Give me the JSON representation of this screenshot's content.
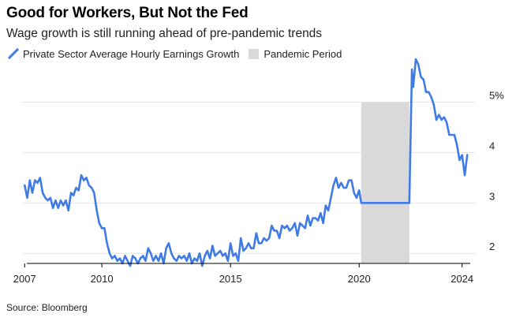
{
  "title": "Good for Workers, But Not the Fed",
  "subtitle": "Wage growth is still running ahead of pre-pandemic trends",
  "source": "Source: Bloomberg",
  "colors": {
    "line": "#3f7be6",
    "band": "#d9d9d9",
    "grid": "#e6e6e6",
    "axis": "#000000"
  },
  "chart_data": {
    "type": "line",
    "title": "Good for Workers, But Not the Fed",
    "subtitle": "Wage growth is still running ahead of pre-pandemic trends",
    "xlabel": "",
    "ylabel": "",
    "xlim": [
      2006.9,
      2024.5
    ],
    "ylim": [
      1.8,
      5.9
    ],
    "grid": true,
    "legend_position": "top-left",
    "x_ticks": [
      {
        "value": 2007,
        "label": "2007"
      },
      {
        "value": 2010,
        "label": "2010"
      },
      {
        "value": 2015,
        "label": "2015"
      },
      {
        "value": 2020,
        "label": "2020"
      },
      {
        "value": 2024,
        "label": "2024"
      }
    ],
    "y_ticks": [
      {
        "value": 2,
        "label": "2"
      },
      {
        "value": 3,
        "label": "3"
      },
      {
        "value": 4,
        "label": "4"
      },
      {
        "value": 5,
        "label": "5%"
      }
    ],
    "legend": [
      {
        "label": "Private Sector Average Hourly Earnings Growth",
        "kind": "line",
        "color": "#3f7be6"
      },
      {
        "label": "Pandemic Period",
        "kind": "band",
        "color": "#d9d9d9"
      }
    ],
    "bands": [
      {
        "name": "Pandemic Period",
        "x_start": 2020.08,
        "x_end": 2021.95,
        "color": "#d9d9d9"
      }
    ],
    "series": [
      {
        "name": "Private Sector Average Hourly Earnings Growth",
        "color": "#3f7be6",
        "points": [
          [
            2007.0,
            3.35
          ],
          [
            2007.1,
            3.1
          ],
          [
            2007.2,
            3.45
          ],
          [
            2007.3,
            3.2
          ],
          [
            2007.4,
            3.45
          ],
          [
            2007.5,
            3.4
          ],
          [
            2007.6,
            3.5
          ],
          [
            2007.7,
            3.2
          ],
          [
            2007.8,
            3.1
          ],
          [
            2007.9,
            3.05
          ],
          [
            2008.0,
            3.1
          ],
          [
            2008.1,
            2.9
          ],
          [
            2008.2,
            3.05
          ],
          [
            2008.3,
            2.9
          ],
          [
            2008.4,
            3.05
          ],
          [
            2008.5,
            2.95
          ],
          [
            2008.6,
            3.05
          ],
          [
            2008.7,
            2.85
          ],
          [
            2008.8,
            3.2
          ],
          [
            2008.9,
            3.15
          ],
          [
            2009.0,
            3.3
          ],
          [
            2009.1,
            3.25
          ],
          [
            2009.2,
            3.55
          ],
          [
            2009.3,
            3.45
          ],
          [
            2009.4,
            3.5
          ],
          [
            2009.5,
            3.35
          ],
          [
            2009.6,
            3.3
          ],
          [
            2009.7,
            3.2
          ],
          [
            2009.8,
            2.85
          ],
          [
            2009.9,
            2.6
          ],
          [
            2010.0,
            2.5
          ],
          [
            2010.1,
            2.5
          ],
          [
            2010.2,
            2.2
          ],
          [
            2010.3,
            2.0
          ],
          [
            2010.4,
            1.9
          ],
          [
            2010.5,
            1.95
          ],
          [
            2010.6,
            1.85
          ],
          [
            2010.7,
            1.9
          ],
          [
            2010.8,
            1.8
          ],
          [
            2010.9,
            1.95
          ],
          [
            2011.0,
            1.85
          ],
          [
            2011.1,
            1.75
          ],
          [
            2011.2,
            1.95
          ],
          [
            2011.3,
            1.9
          ],
          [
            2011.4,
            1.8
          ],
          [
            2011.5,
            1.9
          ],
          [
            2011.6,
            1.95
          ],
          [
            2011.7,
            1.85
          ],
          [
            2011.8,
            2.1
          ],
          [
            2011.9,
            2.0
          ],
          [
            2012.0,
            1.85
          ],
          [
            2012.1,
            1.95
          ],
          [
            2012.2,
            1.85
          ],
          [
            2012.3,
            2.0
          ],
          [
            2012.4,
            1.8
          ],
          [
            2012.5,
            2.1
          ],
          [
            2012.6,
            2.2
          ],
          [
            2012.7,
            2.0
          ],
          [
            2012.8,
            1.9
          ],
          [
            2012.9,
            1.85
          ],
          [
            2013.0,
            1.95
          ],
          [
            2013.1,
            1.9
          ],
          [
            2013.2,
            1.95
          ],
          [
            2013.3,
            1.85
          ],
          [
            2013.4,
            2.0
          ],
          [
            2013.5,
            1.8
          ],
          [
            2013.6,
            1.9
          ],
          [
            2013.7,
            1.85
          ],
          [
            2013.8,
            2.0
          ],
          [
            2013.9,
            1.75
          ],
          [
            2014.0,
            1.95
          ],
          [
            2014.1,
            2.05
          ],
          [
            2014.2,
            1.9
          ],
          [
            2014.3,
            2.15
          ],
          [
            2014.4,
            1.95
          ],
          [
            2014.5,
            2.0
          ],
          [
            2014.6,
            2.05
          ],
          [
            2014.7,
            1.95
          ],
          [
            2014.8,
            2.0
          ],
          [
            2014.9,
            1.85
          ],
          [
            2015.0,
            2.2
          ],
          [
            2015.1,
            1.95
          ],
          [
            2015.2,
            2.0
          ],
          [
            2015.3,
            1.85
          ],
          [
            2015.4,
            2.3
          ],
          [
            2015.5,
            2.05
          ],
          [
            2015.6,
            2.1
          ],
          [
            2015.7,
            2.2
          ],
          [
            2015.8,
            2.1
          ],
          [
            2015.9,
            2.1
          ],
          [
            2016.0,
            2.4
          ],
          [
            2016.1,
            2.2
          ],
          [
            2016.2,
            2.2
          ],
          [
            2016.3,
            2.3
          ],
          [
            2016.4,
            2.25
          ],
          [
            2016.5,
            2.3
          ],
          [
            2016.6,
            2.55
          ],
          [
            2016.7,
            2.45
          ],
          [
            2016.8,
            2.45
          ],
          [
            2016.9,
            2.3
          ],
          [
            2017.0,
            2.55
          ],
          [
            2017.1,
            2.5
          ],
          [
            2017.2,
            2.55
          ],
          [
            2017.3,
            2.45
          ],
          [
            2017.4,
            2.5
          ],
          [
            2017.5,
            2.6
          ],
          [
            2017.6,
            2.35
          ],
          [
            2017.7,
            2.6
          ],
          [
            2017.8,
            2.55
          ],
          [
            2017.9,
            2.5
          ],
          [
            2018.0,
            2.75
          ],
          [
            2018.1,
            2.55
          ],
          [
            2018.2,
            2.7
          ],
          [
            2018.3,
            2.7
          ],
          [
            2018.4,
            2.65
          ],
          [
            2018.5,
            2.8
          ],
          [
            2018.6,
            2.6
          ],
          [
            2018.7,
            2.95
          ],
          [
            2018.8,
            2.85
          ],
          [
            2018.9,
            3.1
          ],
          [
            2019.0,
            3.35
          ],
          [
            2019.1,
            3.5
          ],
          [
            2019.2,
            3.3
          ],
          [
            2019.3,
            3.4
          ],
          [
            2019.4,
            3.3
          ],
          [
            2019.5,
            3.3
          ],
          [
            2019.6,
            3.45
          ],
          [
            2019.7,
            3.45
          ],
          [
            2019.8,
            3.2
          ],
          [
            2019.9,
            3.1
          ],
          [
            2020.0,
            3.25
          ],
          [
            2020.08,
            3.0
          ],
          [
            2021.95,
            3.0
          ],
          [
            2022.05,
            5.65
          ],
          [
            2022.1,
            5.3
          ],
          [
            2022.2,
            5.85
          ],
          [
            2022.3,
            5.75
          ],
          [
            2022.4,
            5.5
          ],
          [
            2022.5,
            5.45
          ],
          [
            2022.6,
            5.2
          ],
          [
            2022.7,
            5.2
          ],
          [
            2022.8,
            5.1
          ],
          [
            2022.9,
            4.95
          ],
          [
            2023.0,
            4.65
          ],
          [
            2023.1,
            4.75
          ],
          [
            2023.2,
            4.65
          ],
          [
            2023.3,
            4.7
          ],
          [
            2023.4,
            4.6
          ],
          [
            2023.5,
            4.35
          ],
          [
            2023.6,
            4.35
          ],
          [
            2023.7,
            4.35
          ],
          [
            2023.8,
            4.15
          ],
          [
            2023.9,
            3.85
          ],
          [
            2024.0,
            3.95
          ],
          [
            2024.1,
            3.55
          ],
          [
            2024.2,
            3.95
          ]
        ]
      }
    ]
  }
}
